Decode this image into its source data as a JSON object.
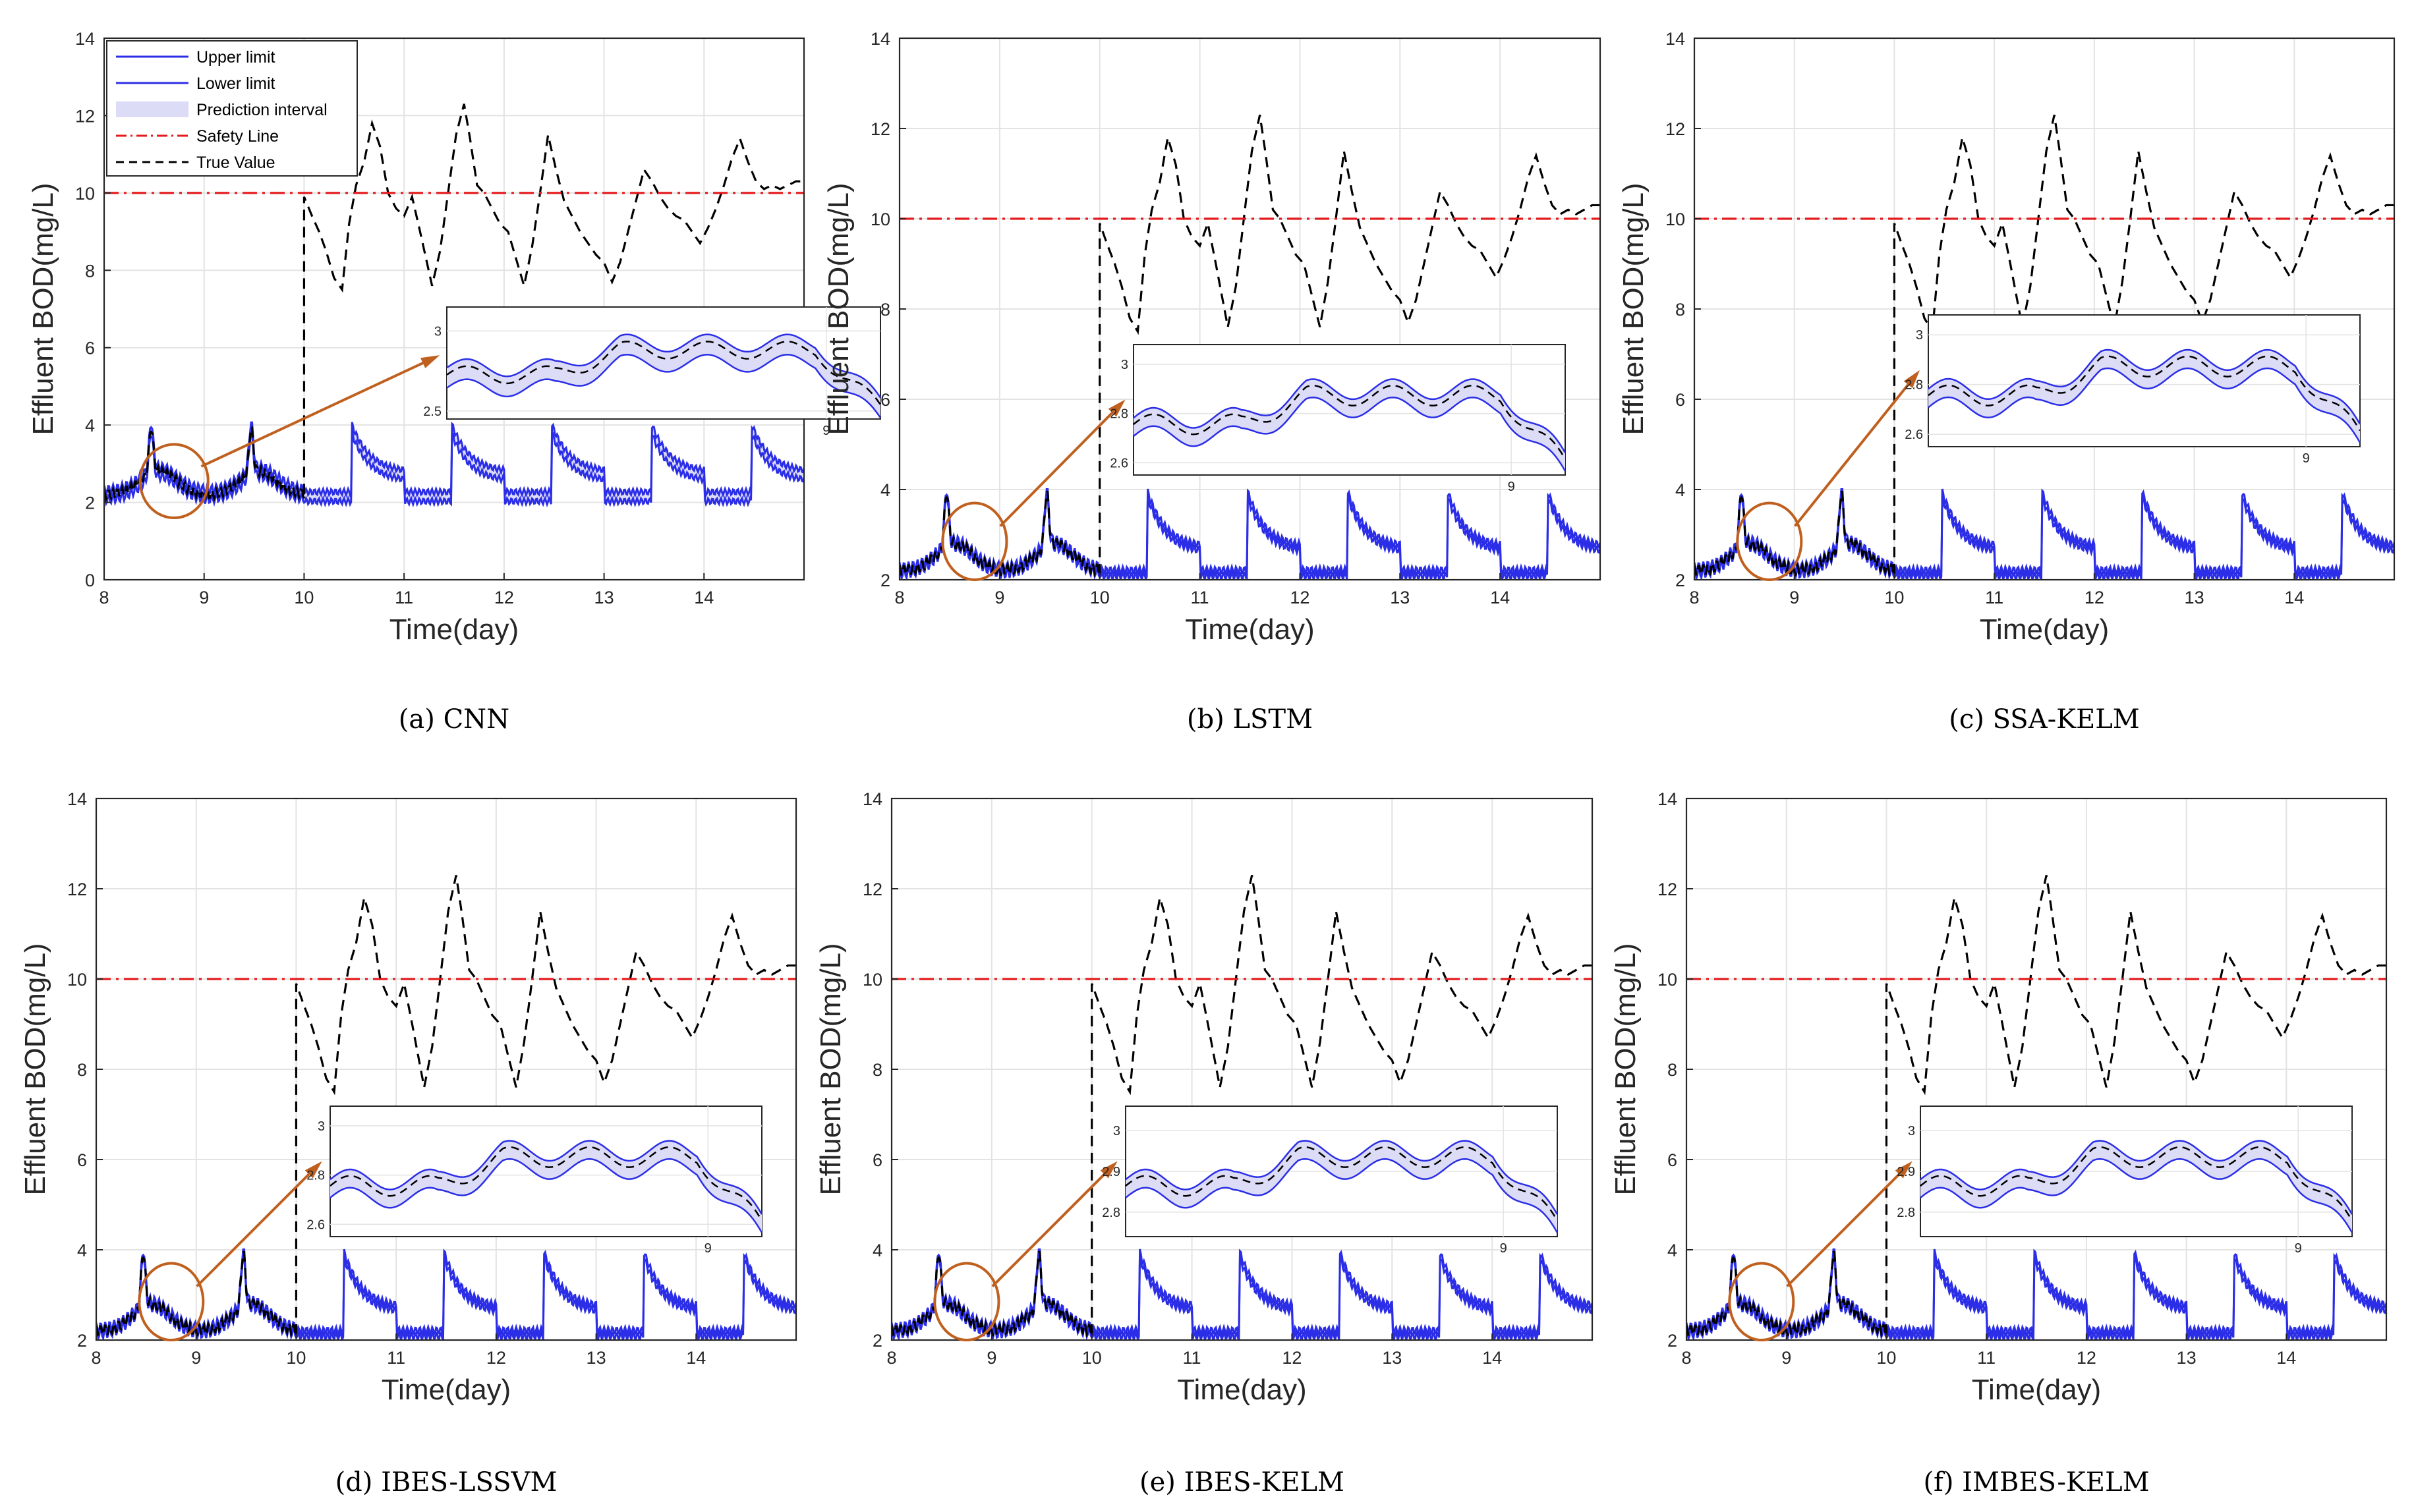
{
  "figure": {
    "colors": {
      "band": "#2b2ee6",
      "fill": "#dcdcf7",
      "safety": "#e41a1c",
      "true": "#000000",
      "arrow": "#c0601f",
      "grid": "#e3e3e3",
      "axis": "#262626"
    }
  },
  "chart_data": [
    {
      "type": "line",
      "model": "CNN",
      "caption": "(a) CNN",
      "xlabel": "Time(day)",
      "ylabel": "Effluent BOD(mg/L)",
      "xlim": [
        8,
        15
      ],
      "ylim": [
        0,
        14
      ],
      "xticks": [
        8,
        9,
        10,
        11,
        12,
        13,
        14
      ],
      "yticks": [
        0,
        2,
        4,
        6,
        8,
        10,
        12,
        14
      ],
      "legend": {
        "position": "top-left",
        "entries": [
          "Upper limit",
          "Lower limit",
          "Prediction interval",
          "Safety Line",
          "True Value"
        ]
      },
      "safety_line": 10,
      "true_series": {
        "x": [
          10.0,
          10.08,
          10.15,
          10.22,
          10.3,
          10.38,
          10.45,
          10.52,
          10.6,
          10.68,
          10.76,
          10.84,
          10.92,
          11.0,
          11.08,
          11.16,
          11.22,
          11.28,
          11.36,
          11.44,
          11.52,
          11.6,
          11.66,
          11.73,
          11.8,
          11.88,
          11.96,
          12.04,
          12.12,
          12.2,
          12.28,
          12.36,
          12.44,
          12.52,
          12.6,
          12.68,
          12.76,
          12.84,
          12.92,
          13.0,
          13.08,
          13.16,
          13.24,
          13.32,
          13.4,
          13.48,
          13.56,
          13.64,
          13.72,
          13.8,
          13.88,
          13.96,
          14.04,
          14.12,
          14.2,
          14.28,
          14.36,
          14.44,
          14.52,
          14.6,
          14.68,
          14.76,
          14.84,
          14.92,
          15.0
        ],
        "y": [
          9.9,
          9.4,
          9.0,
          8.5,
          7.8,
          7.5,
          9.2,
          10.2,
          10.8,
          11.8,
          11.2,
          10.0,
          9.6,
          9.4,
          9.9,
          9.0,
          8.3,
          7.6,
          8.5,
          10.0,
          11.5,
          12.3,
          11.4,
          10.2,
          10.0,
          9.6,
          9.2,
          9.0,
          8.3,
          7.6,
          8.6,
          10.0,
          11.5,
          10.6,
          9.8,
          9.4,
          9.0,
          8.7,
          8.4,
          8.2,
          7.7,
          8.2,
          9.0,
          9.8,
          10.6,
          10.3,
          9.9,
          9.6,
          9.4,
          9.3,
          9.0,
          8.7,
          9.1,
          9.6,
          10.2,
          10.9,
          11.4,
          10.8,
          10.3,
          10.1,
          10.2,
          10.1,
          10.2,
          10.3,
          10.3
        ]
      },
      "inset": {
        "yticks": [
          2.5,
          3
        ],
        "xtick": 9
      }
    },
    {
      "type": "line",
      "model": "LSTM",
      "caption": "(b) LSTM",
      "xlabel": "Time(day)",
      "ylabel": "Effluent BOD(mg/L)",
      "xlim": [
        8,
        15
      ],
      "ylim": [
        2,
        14
      ],
      "xticks": [
        8,
        9,
        10,
        11,
        12,
        13,
        14
      ],
      "yticks": [
        2,
        4,
        6,
        8,
        10,
        12,
        14
      ],
      "safety_line": 10,
      "true_series": {
        "x": [
          10.0,
          10.08,
          10.15,
          10.22,
          10.3,
          10.38,
          10.45,
          10.52,
          10.6,
          10.68,
          10.76,
          10.84,
          10.92,
          11.0,
          11.08,
          11.16,
          11.22,
          11.28,
          11.36,
          11.44,
          11.52,
          11.6,
          11.66,
          11.73,
          11.8,
          11.88,
          11.96,
          12.04,
          12.12,
          12.2,
          12.28,
          12.36,
          12.44,
          12.52,
          12.6,
          12.68,
          12.76,
          12.84,
          12.92,
          13.0,
          13.08,
          13.16,
          13.24,
          13.32,
          13.4,
          13.48,
          13.56,
          13.64,
          13.72,
          13.8,
          13.88,
          13.96,
          14.04,
          14.12,
          14.2,
          14.28,
          14.36,
          14.44,
          14.52,
          14.6,
          14.68,
          14.76,
          14.84,
          14.92,
          15.0
        ],
        "y": [
          9.9,
          9.4,
          9.0,
          8.5,
          7.8,
          7.5,
          9.2,
          10.2,
          10.8,
          11.8,
          11.2,
          10.0,
          9.6,
          9.4,
          9.9,
          9.0,
          8.3,
          7.6,
          8.5,
          10.0,
          11.5,
          12.3,
          11.4,
          10.2,
          10.0,
          9.6,
          9.2,
          9.0,
          8.3,
          7.6,
          8.6,
          10.0,
          11.5,
          10.6,
          9.8,
          9.4,
          9.0,
          8.7,
          8.4,
          8.2,
          7.7,
          8.2,
          9.0,
          9.8,
          10.6,
          10.3,
          9.9,
          9.6,
          9.4,
          9.3,
          9.0,
          8.7,
          9.1,
          9.6,
          10.2,
          10.9,
          11.4,
          10.8,
          10.3,
          10.1,
          10.2,
          10.1,
          10.2,
          10.3,
          10.3
        ]
      },
      "inset": {
        "yticks": [
          2.6,
          2.8,
          3
        ],
        "xtick": 9
      }
    },
    {
      "type": "line",
      "model": "SSA-KELM",
      "caption": "(c) SSA-KELM",
      "xlabel": "Time(day)",
      "ylabel": "Effluent BOD(mg/L)",
      "xlim": [
        8,
        15
      ],
      "ylim": [
        2,
        14
      ],
      "xticks": [
        8,
        9,
        10,
        11,
        12,
        13,
        14
      ],
      "yticks": [
        2,
        4,
        6,
        8,
        10,
        12,
        14
      ],
      "safety_line": 10,
      "true_series": {
        "x": [
          10.0,
          10.08,
          10.15,
          10.22,
          10.3,
          10.38,
          10.45,
          10.52,
          10.6,
          10.68,
          10.76,
          10.84,
          10.92,
          11.0,
          11.08,
          11.16,
          11.22,
          11.28,
          11.36,
          11.44,
          11.52,
          11.6,
          11.66,
          11.73,
          11.8,
          11.88,
          11.96,
          12.04,
          12.12,
          12.2,
          12.28,
          12.36,
          12.44,
          12.52,
          12.6,
          12.68,
          12.76,
          12.84,
          12.92,
          13.0,
          13.08,
          13.16,
          13.24,
          13.32,
          13.4,
          13.48,
          13.56,
          13.64,
          13.72,
          13.8,
          13.88,
          13.96,
          14.04,
          14.12,
          14.2,
          14.28,
          14.36,
          14.44,
          14.52,
          14.6,
          14.68,
          14.76,
          14.84,
          14.92,
          15.0
        ],
        "y": [
          9.9,
          9.4,
          9.0,
          8.5,
          7.8,
          7.5,
          9.2,
          10.2,
          10.8,
          11.8,
          11.2,
          10.0,
          9.6,
          9.4,
          9.9,
          9.0,
          8.3,
          7.6,
          8.5,
          10.0,
          11.5,
          12.3,
          11.4,
          10.2,
          10.0,
          9.6,
          9.2,
          9.0,
          8.3,
          7.6,
          8.6,
          10.0,
          11.5,
          10.6,
          9.8,
          9.4,
          9.0,
          8.7,
          8.4,
          8.2,
          7.7,
          8.2,
          9.0,
          9.8,
          10.6,
          10.3,
          9.9,
          9.6,
          9.4,
          9.3,
          9.0,
          8.7,
          9.1,
          9.6,
          10.2,
          10.9,
          11.4,
          10.8,
          10.3,
          10.1,
          10.2,
          10.1,
          10.2,
          10.3,
          10.3
        ]
      },
      "inset": {
        "yticks": [
          2.6,
          2.8,
          3
        ],
        "xtick": 9
      }
    },
    {
      "type": "line",
      "model": "IBES-LSSVM",
      "caption": "(d) IBES-LSSVM",
      "xlabel": "Time(day)",
      "ylabel": "Effluent BOD(mg/L)",
      "xlim": [
        8,
        15
      ],
      "ylim": [
        2,
        14
      ],
      "xticks": [
        8,
        9,
        10,
        11,
        12,
        13,
        14
      ],
      "yticks": [
        2,
        4,
        6,
        8,
        10,
        12,
        14
      ],
      "safety_line": 10,
      "true_series": {
        "x": [
          10.0,
          10.08,
          10.15,
          10.22,
          10.3,
          10.38,
          10.45,
          10.52,
          10.6,
          10.68,
          10.76,
          10.84,
          10.92,
          11.0,
          11.08,
          11.16,
          11.22,
          11.28,
          11.36,
          11.44,
          11.52,
          11.6,
          11.66,
          11.73,
          11.8,
          11.88,
          11.96,
          12.04,
          12.12,
          12.2,
          12.28,
          12.36,
          12.44,
          12.52,
          12.6,
          12.68,
          12.76,
          12.84,
          12.92,
          13.0,
          13.08,
          13.16,
          13.24,
          13.32,
          13.4,
          13.48,
          13.56,
          13.64,
          13.72,
          13.8,
          13.88,
          13.96,
          14.04,
          14.12,
          14.2,
          14.28,
          14.36,
          14.44,
          14.52,
          14.6,
          14.68,
          14.76,
          14.84,
          14.92,
          15.0
        ],
        "y": [
          9.9,
          9.4,
          9.0,
          8.5,
          7.8,
          7.5,
          9.2,
          10.2,
          10.8,
          11.8,
          11.2,
          10.0,
          9.6,
          9.4,
          9.9,
          9.0,
          8.3,
          7.6,
          8.5,
          10.0,
          11.5,
          12.3,
          11.4,
          10.2,
          10.0,
          9.6,
          9.2,
          9.0,
          8.3,
          7.6,
          8.6,
          10.0,
          11.5,
          10.6,
          9.8,
          9.4,
          9.0,
          8.7,
          8.4,
          8.2,
          7.7,
          8.2,
          9.0,
          9.8,
          10.6,
          10.3,
          9.9,
          9.6,
          9.4,
          9.3,
          9.0,
          8.7,
          9.1,
          9.6,
          10.2,
          10.9,
          11.4,
          10.8,
          10.3,
          10.1,
          10.2,
          10.1,
          10.2,
          10.3,
          10.3
        ]
      },
      "inset": {
        "yticks": [
          2.6,
          2.8,
          3
        ],
        "xtick": 9
      }
    },
    {
      "type": "line",
      "model": "IBES-KELM",
      "caption": "(e) IBES-KELM",
      "xlabel": "Time(day)",
      "ylabel": "Effluent BOD(mg/L)",
      "xlim": [
        8,
        15
      ],
      "ylim": [
        2,
        14
      ],
      "xticks": [
        8,
        9,
        10,
        11,
        12,
        13,
        14
      ],
      "yticks": [
        2,
        4,
        6,
        8,
        10,
        12,
        14
      ],
      "safety_line": 10,
      "true_series": {
        "x": [
          10.0,
          10.08,
          10.15,
          10.22,
          10.3,
          10.38,
          10.45,
          10.52,
          10.6,
          10.68,
          10.76,
          10.84,
          10.92,
          11.0,
          11.08,
          11.16,
          11.22,
          11.28,
          11.36,
          11.44,
          11.52,
          11.6,
          11.66,
          11.73,
          11.8,
          11.88,
          11.96,
          12.04,
          12.12,
          12.2,
          12.28,
          12.36,
          12.44,
          12.52,
          12.6,
          12.68,
          12.76,
          12.84,
          12.92,
          13.0,
          13.08,
          13.16,
          13.24,
          13.32,
          13.4,
          13.48,
          13.56,
          13.64,
          13.72,
          13.8,
          13.88,
          13.96,
          14.04,
          14.12,
          14.2,
          14.28,
          14.36,
          14.44,
          14.52,
          14.6,
          14.68,
          14.76,
          14.84,
          14.92,
          15.0
        ],
        "y": [
          9.9,
          9.4,
          9.0,
          8.5,
          7.8,
          7.5,
          9.2,
          10.2,
          10.8,
          11.8,
          11.2,
          10.0,
          9.6,
          9.4,
          9.9,
          9.0,
          8.3,
          7.6,
          8.5,
          10.0,
          11.5,
          12.3,
          11.4,
          10.2,
          10.0,
          9.6,
          9.2,
          9.0,
          8.3,
          7.6,
          8.6,
          10.0,
          11.5,
          10.6,
          9.8,
          9.4,
          9.0,
          8.7,
          8.4,
          8.2,
          7.7,
          8.2,
          9.0,
          9.8,
          10.6,
          10.3,
          9.9,
          9.6,
          9.4,
          9.3,
          9.0,
          8.7,
          9.1,
          9.6,
          10.2,
          10.9,
          11.4,
          10.8,
          10.3,
          10.1,
          10.2,
          10.1,
          10.2,
          10.3,
          10.3
        ]
      },
      "inset": {
        "yticks": [
          2.8,
          2.9,
          3
        ],
        "xtick": 9
      }
    },
    {
      "type": "line",
      "model": "IMBES-KELM",
      "caption": "(f) IMBES-KELM",
      "xlabel": "Time(day)",
      "ylabel": "Effluent BOD(mg/L)",
      "xlim": [
        8,
        15
      ],
      "ylim": [
        2,
        14
      ],
      "xticks": [
        8,
        9,
        10,
        11,
        12,
        13,
        14
      ],
      "yticks": [
        2,
        4,
        6,
        8,
        10,
        12,
        14
      ],
      "safety_line": 10,
      "true_series": {
        "x": [
          10.0,
          10.08,
          10.15,
          10.22,
          10.3,
          10.38,
          10.45,
          10.52,
          10.6,
          10.68,
          10.76,
          10.84,
          10.92,
          11.0,
          11.08,
          11.16,
          11.22,
          11.28,
          11.36,
          11.44,
          11.52,
          11.6,
          11.66,
          11.73,
          11.8,
          11.88,
          11.96,
          12.04,
          12.12,
          12.2,
          12.28,
          12.36,
          12.44,
          12.52,
          12.6,
          12.68,
          12.76,
          12.84,
          12.92,
          13.0,
          13.08,
          13.16,
          13.24,
          13.32,
          13.4,
          13.48,
          13.56,
          13.64,
          13.72,
          13.8,
          13.88,
          13.96,
          14.04,
          14.12,
          14.2,
          14.28,
          14.36,
          14.44,
          14.52,
          14.6,
          14.68,
          14.76,
          14.84,
          14.92,
          15.0
        ],
        "y": [
          9.9,
          9.4,
          9.0,
          8.5,
          7.8,
          7.5,
          9.2,
          10.2,
          10.8,
          11.8,
          11.2,
          10.0,
          9.6,
          9.4,
          9.9,
          9.0,
          8.3,
          7.6,
          8.5,
          10.0,
          11.5,
          12.3,
          11.4,
          10.2,
          10.0,
          9.6,
          9.2,
          9.0,
          8.3,
          7.6,
          8.6,
          10.0,
          11.5,
          10.6,
          9.8,
          9.4,
          9.0,
          8.7,
          8.4,
          8.2,
          7.7,
          8.2,
          9.0,
          9.8,
          10.6,
          10.3,
          9.9,
          9.6,
          9.4,
          9.3,
          9.0,
          8.7,
          9.1,
          9.6,
          10.2,
          10.9,
          11.4,
          10.8,
          10.3,
          10.1,
          10.2,
          10.1,
          10.2,
          10.3,
          10.3
        ]
      },
      "inset": {
        "yticks": [
          2.8,
          2.9,
          3
        ],
        "xtick": 9
      }
    }
  ]
}
